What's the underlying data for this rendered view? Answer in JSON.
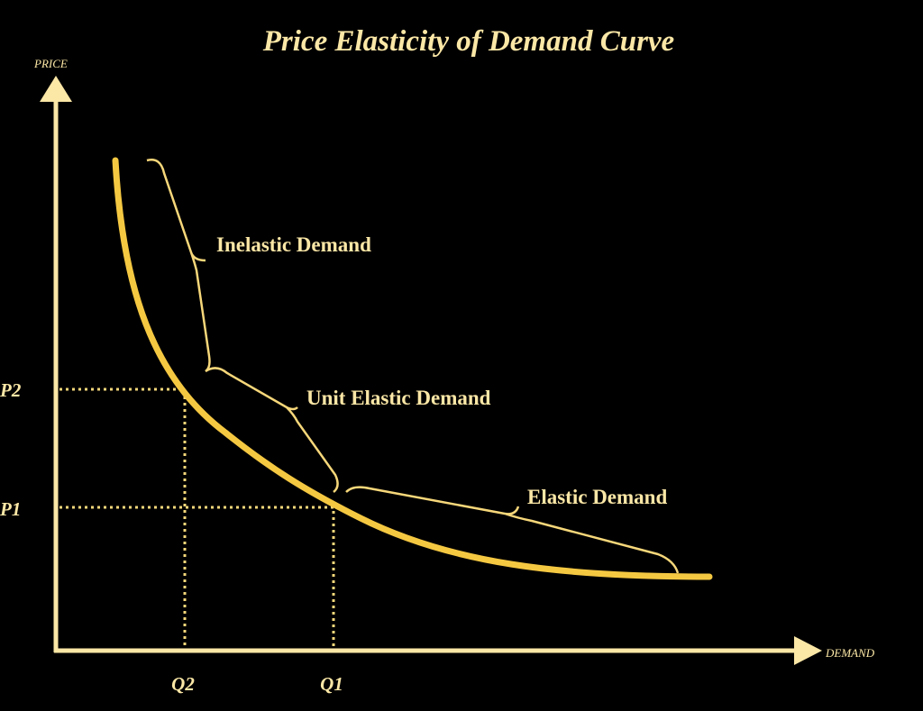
{
  "title": "Price Elasticity of Demand Curve",
  "axes": {
    "y_label": "PRICE",
    "x_label": "DEMAND"
  },
  "ticks": {
    "y": [
      "P2",
      "P1"
    ],
    "x": [
      "Q2",
      "Q1"
    ]
  },
  "regions": [
    "Inelastic Demand",
    "Unit Elastic Demand",
    "Elastic Demand"
  ]
}
